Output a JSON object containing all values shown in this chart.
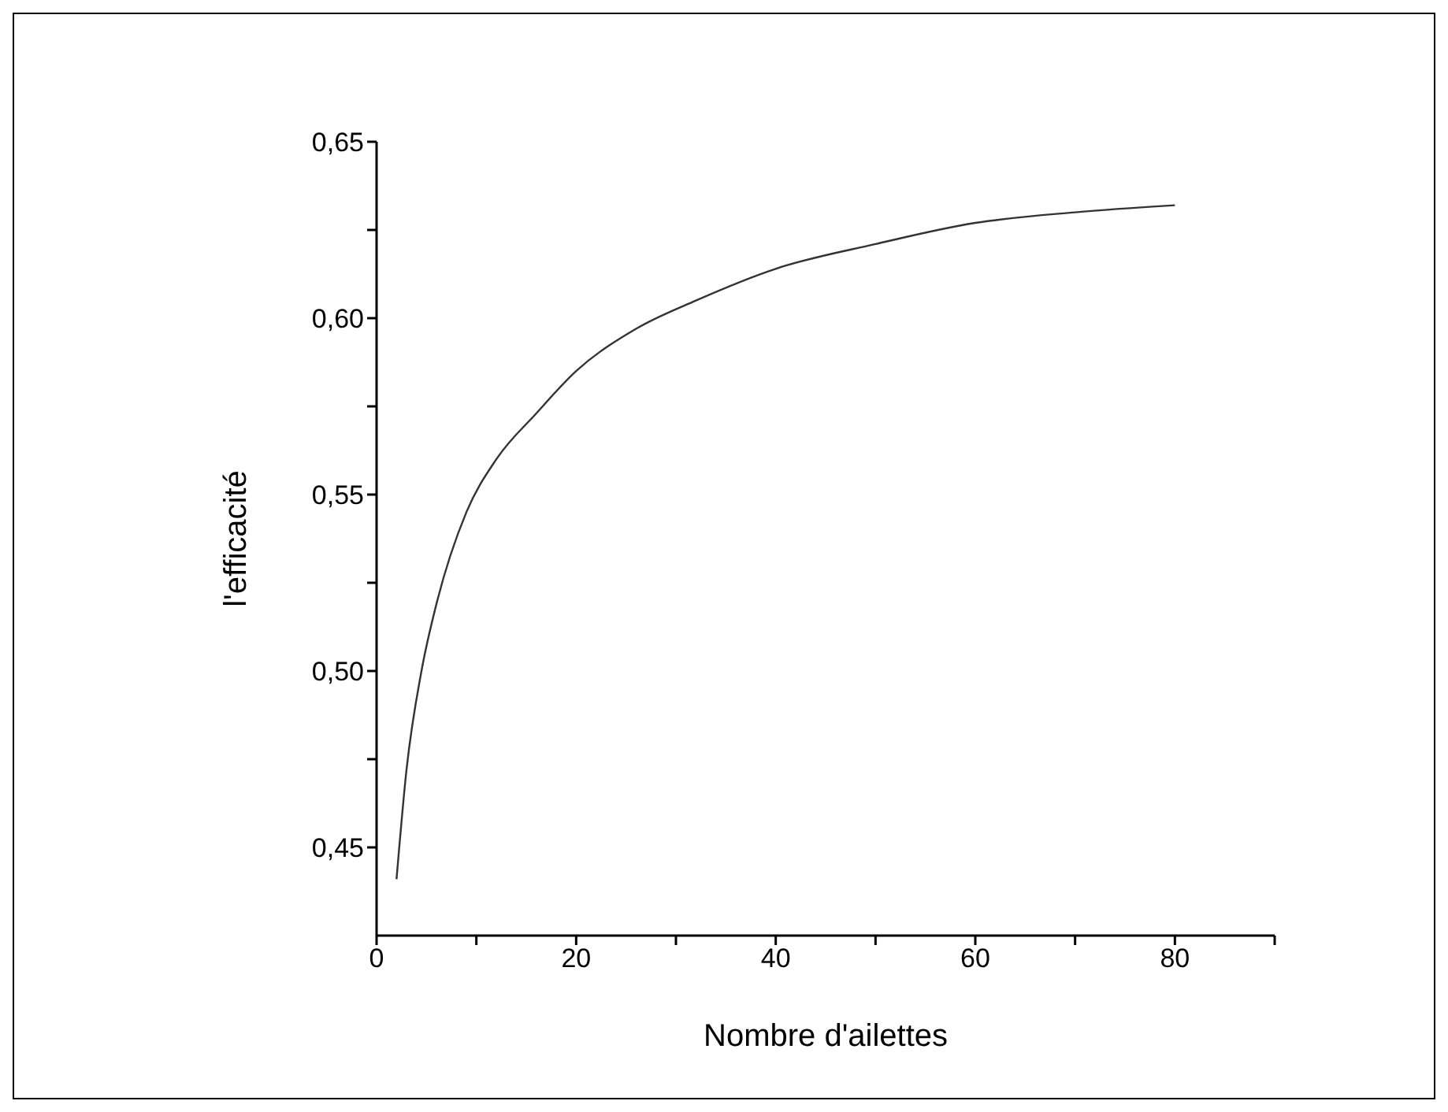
{
  "chart_data": {
    "type": "line",
    "xlabel": "Nombre d'ailettes",
    "ylabel": "l'efficacité",
    "xlim": [
      0,
      90
    ],
    "ylim": [
      0.425,
      0.65
    ],
    "xticks": [
      0,
      {
        "value": 10,
        "label": null
      },
      20,
      {
        "value": 30,
        "label": null
      },
      40,
      {
        "value": 50,
        "label": null
      },
      60,
      {
        "value": 70,
        "label": null
      },
      80,
      {
        "value": 90,
        "label": null
      }
    ],
    "yticks": [
      {
        "value": 0.45,
        "label": "0,45"
      },
      {
        "value": 0.475,
        "label": null
      },
      {
        "value": 0.5,
        "label": "0,50"
      },
      {
        "value": 0.525,
        "label": null
      },
      {
        "value": 0.55,
        "label": "0,55"
      },
      {
        "value": 0.575,
        "label": null
      },
      {
        "value": 0.6,
        "label": "0,60"
      },
      {
        "value": 0.625,
        "label": null
      },
      {
        "value": 0.65,
        "label": "0,65"
      }
    ],
    "grid": false,
    "legend": false,
    "marker": "none",
    "line_style": "solid",
    "x": [
      2,
      3,
      4.5,
      6,
      9,
      12,
      16,
      20,
      26,
      32,
      40,
      50,
      60,
      70,
      80
    ],
    "series": [
      {
        "color": "#333333",
        "values": [
          0.441,
          0.472,
          0.5,
          0.519,
          0.545,
          0.56,
          0.573,
          0.585,
          0.597,
          0.605,
          0.614,
          0.621,
          0.627,
          0.63,
          0.632
        ]
      }
    ]
  }
}
